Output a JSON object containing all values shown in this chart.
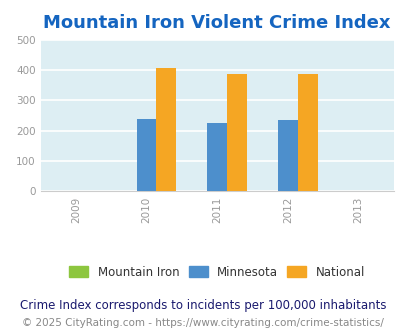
{
  "title": "Mountain Iron Violent Crime Index",
  "title_color": "#1565c0",
  "years": [
    2009,
    2010,
    2011,
    2012,
    2013
  ],
  "data_years": [
    2010,
    2011,
    2012
  ],
  "mountain_iron": [
    0,
    0,
    0
  ],
  "minnesota": [
    237,
    224,
    234
  ],
  "national": [
    405,
    387,
    387
  ],
  "bar_width": 0.28,
  "ylim": [
    0,
    500
  ],
  "yticks": [
    0,
    100,
    200,
    300,
    400,
    500
  ],
  "xlim": [
    2008.5,
    2013.5
  ],
  "xticks": [
    2009,
    2010,
    2011,
    2012,
    2013
  ],
  "mountain_iron_color": "#8dc63f",
  "minnesota_color": "#4d8fcc",
  "national_color": "#f5a623",
  "plot_bg_color": "#ddeef3",
  "grid_color": "#ffffff",
  "tick_color": "#999999",
  "footer1": "Crime Index corresponds to incidents per 100,000 inhabitants",
  "footer1_color": "#1a1a6e",
  "footer2": "© 2025 CityRating.com - https://www.cityrating.com/crime-statistics/",
  "footer2_color": "#888888",
  "legend_labels": [
    "Mountain Iron",
    "Minnesota",
    "National"
  ],
  "title_fontsize": 13,
  "tick_fontsize": 7.5,
  "footer1_fontsize": 8.5,
  "footer2_fontsize": 7.5,
  "legend_fontsize": 8.5
}
